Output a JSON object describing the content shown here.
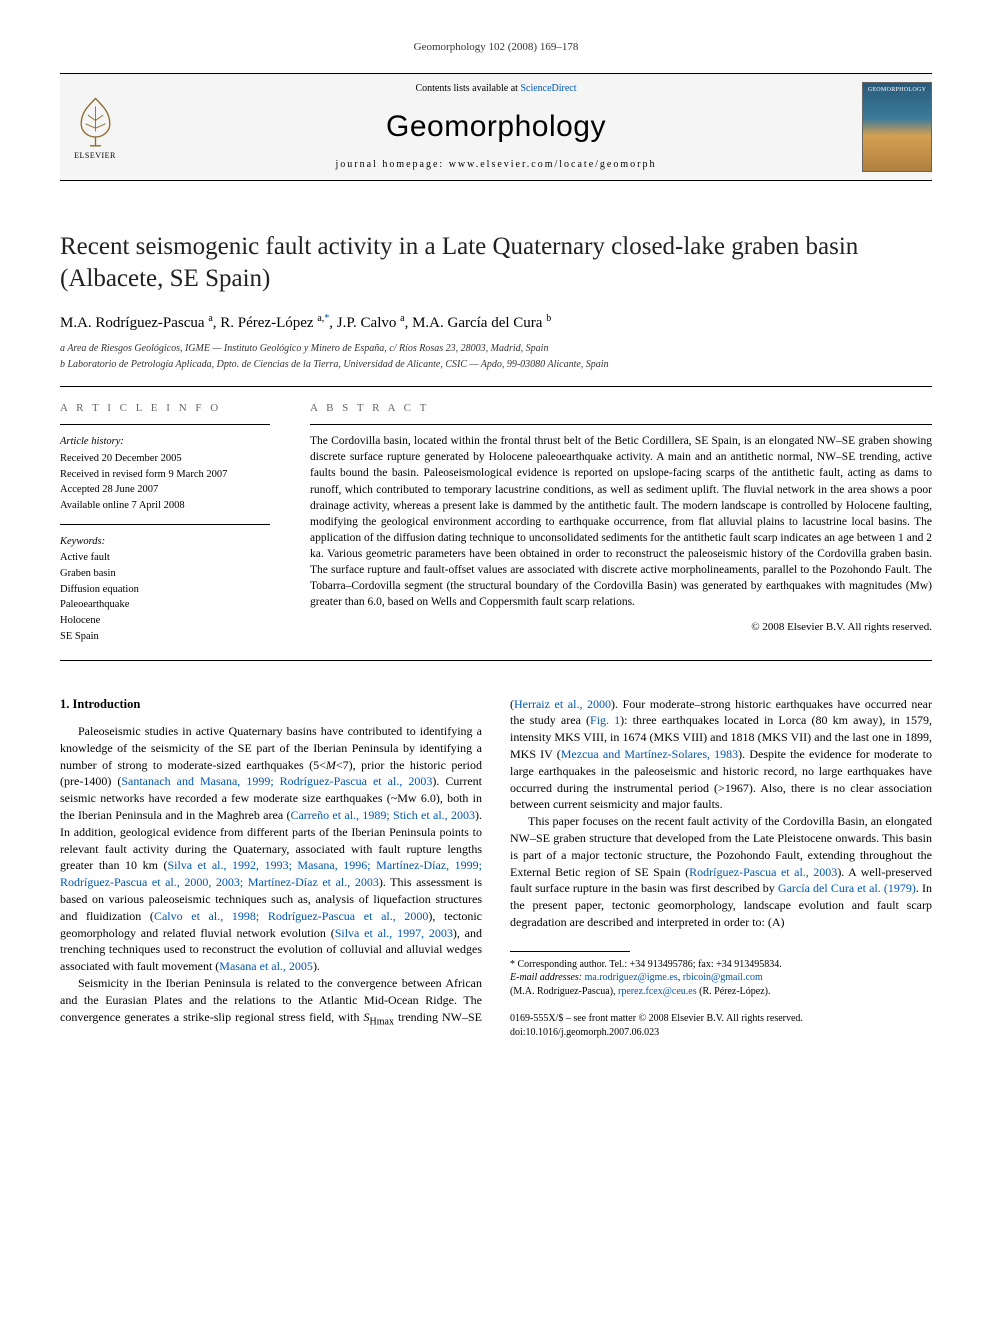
{
  "running_head": "Geomorphology 102 (2008) 169–178",
  "header": {
    "contents_prefix": "Contents lists available at ",
    "contents_link": "ScienceDirect",
    "journal": "Geomorphology",
    "homepage_label": "journal homepage: www.elsevier.com/locate/geomorph",
    "elsevier_label": "ELSEVIER",
    "cover_label": "GEOMORPHOLOGY",
    "colors": {
      "rule": "#000000",
      "link": "#0056b3",
      "header_bg": "#f5f5f5",
      "cover_gradient_top": "#2a5a7a",
      "cover_gradient_mid": "#3a7a9a",
      "cover_gradient_low": "#d4a050",
      "cover_gradient_bot": "#b08040"
    }
  },
  "paper": {
    "title": "Recent seismogenic fault activity in a Late Quaternary closed-lake graben basin (Albacete, SE Spain)",
    "authors_html": "M.A. Rodríguez-Pascua <sup>a</sup>, R. Pérez-López <sup>a,</sup><sup class=\"star\">*</sup>, J.P. Calvo <sup>a</sup>, M.A. García del Cura <sup>b</sup>",
    "affiliations": [
      "a  Area de Riesgos Geológicos, IGME — Instituto Geológico y Minero de España, c/ Ríos Rosas 23, 28003, Madrid, Spain",
      "b  Laboratorio de Petrología Aplicada, Dpto. de Ciencias de la Tierra, Universidad de Alicante, CSIC — Apdo, 99-03080 Alicante, Spain"
    ]
  },
  "article_info": {
    "label": "A R T I C L E    I N F O",
    "history_head": "Article history:",
    "history": [
      "Received 20 December 2005",
      "Received in revised form 9 March 2007",
      "Accepted 28 June 2007",
      "Available online 7 April 2008"
    ],
    "keywords_head": "Keywords:",
    "keywords": [
      "Active fault",
      "Graben basin",
      "Diffusion equation",
      "Paleoearthquake",
      "Holocene",
      "SE Spain"
    ]
  },
  "abstract": {
    "label": "A B S T R A C T",
    "text": "The Cordovilla basin, located within the frontal thrust belt of the Betic Cordillera, SE Spain, is an elongated NW–SE graben showing discrete surface rupture generated by Holocene paleoearthquake activity. A main and an antithetic normal, NW–SE trending, active faults bound the basin. Paleoseismological evidence is reported on upslope-facing scarps of the antithetic fault, acting as dams to runoff, which contributed to temporary lacustrine conditions, as well as sediment uplift. The fluvial network in the area shows a poor drainage activity, whereas a present lake is dammed by the antithetic fault. The modern landscape is controlled by Holocene faulting, modifying the geological environment according to earthquake occurrence, from flat alluvial plains to lacustrine local basins. The application of the diffusion dating technique to unconsolidated sediments for the antithetic fault scarp indicates an age between 1 and 2 ka. Various geometric parameters have been obtained in order to reconstruct the paleoseismic history of the Cordovilla graben basin. The surface rupture and fault-offset values are associated with discrete active morpholineaments, parallel to the Pozohondo Fault. The Tobarra–Cordovilla segment (the structural boundary of the Cordovilla Basin) was generated by earthquakes with magnitudes (Mw) greater than 6.0, based on Wells and Coppersmith fault scarp relations.",
    "copyright": "© 2008 Elsevier B.V. All rights reserved."
  },
  "body": {
    "section_title": "1. Introduction",
    "p1_pre": "Paleoseismic studies in active Quaternary basins have contributed to identifying a knowledge of the seismicity of the SE part of the Iberian Peninsula by identifying a number of strong to moderate-sized earthquakes (5<",
    "p1_it1": "M",
    "p1_mid1": "<7), prior the historic period (pre-1400) (",
    "p1_link1": "Santanach and Masana, 1999; Rodríguez-Pascua et al., 2003",
    "p1_mid2": "). Current seismic networks have recorded a few moderate size earthquakes (~Mw 6.0), both in the Iberian Peninsula and in the Maghreb area (",
    "p1_link2": "Carreño et al., 1989; Stich et al., 2003",
    "p1_mid3": "). In addition, geological evidence from different parts of the Iberian Peninsula points to relevant fault activity during the Quaternary, associated with fault rupture lengths greater than 10 km (",
    "p1_link3": "Silva et al., 1992, 1993; Masana, 1996; Martínez-Díaz, 1999; Rodríguez-Pascua et al., 2000, 2003; Martínez-Díaz et al., 2003",
    "p1_mid4": "). This assessment is based on various paleoseismic techniques such as, analysis of liquefaction structures and fluidization (",
    "p1_link4": "Calvo et al., 1998; Rodríguez-Pascua et al., 2000",
    "p1_post": "), tectonic geomorphology and related fluvial network evolution (",
    "p1_link5": "Silva et al., 1997, 2003",
    "p1_mid5": "), and trenching techniques used to reconstruct the evolution of colluvial and alluvial wedges associated with fault movement (",
    "p1_link6": "Masana et al., 2005",
    "p1_end": ").",
    "p2_pre": "Seismicity in the Iberian Peninsula is related to the convergence between African and the Eurasian Plates and the relations to the Atlantic Mid-Ocean Ridge. The convergence generates a strike-slip regional stress field, with ",
    "p2_it1": "S",
    "p2_sub1": "Hmax",
    "p2_mid1": " trending NW–SE (",
    "p2_link1": "Herraiz et al., 2000",
    "p2_mid2": "). Four moderate–strong historic earthquakes have occurred near the study area (",
    "p2_link2": "Fig. 1",
    "p2_mid3": "): three earthquakes located in Lorca (80 km away), in 1579, intensity MKS VIII, in 1674 (MKS VIII) and 1818 (MKS VII) and the last one in 1899, MKS IV (",
    "p2_link3": "Mezcua and Martínez-Solares, 1983",
    "p2_end": "). Despite the evidence for moderate to large earthquakes in the paleoseismic and historic record, no large earthquakes have occurred during the instrumental period (>1967). Also, there is no clear association between current seismicity and major faults.",
    "p3_pre": "This paper focuses on the recent fault activity of the Cordovilla Basin, an elongated NW–SE graben structure that developed from the Late Pleistocene onwards. This basin is part of a major tectonic structure, the Pozohondo Fault, extending throughout the External Betic region of SE Spain (",
    "p3_link1": "Rodríguez-Pascua et al., 2003",
    "p3_mid1": "). A well-preserved fault surface rupture in the basin was first described by ",
    "p3_link2": "García del Cura et al. (1979)",
    "p3_end": ". In the present paper, tectonic geomorphology, landscape evolution and fault scarp degradation are described and interpreted in order to: (A)"
  },
  "footnotes": {
    "corr": "* Corresponding author. Tel.: +34 913495786; fax: +34 913495834.",
    "email_label": "E-mail addresses: ",
    "email1": "ma.rodriguez@igme.es",
    "sep1": ", ",
    "email2": "rbicoin@gmail.com",
    "paren1": "(M.A. Rodríguez-Pascua), ",
    "email3": "rperez.fcex@ceu.es",
    "paren2": " (R. Pérez-López)."
  },
  "footer": {
    "line1": "0169-555X/$ – see front matter © 2008 Elsevier B.V. All rights reserved.",
    "line2": "doi:10.1016/j.geomorph.2007.06.023"
  }
}
